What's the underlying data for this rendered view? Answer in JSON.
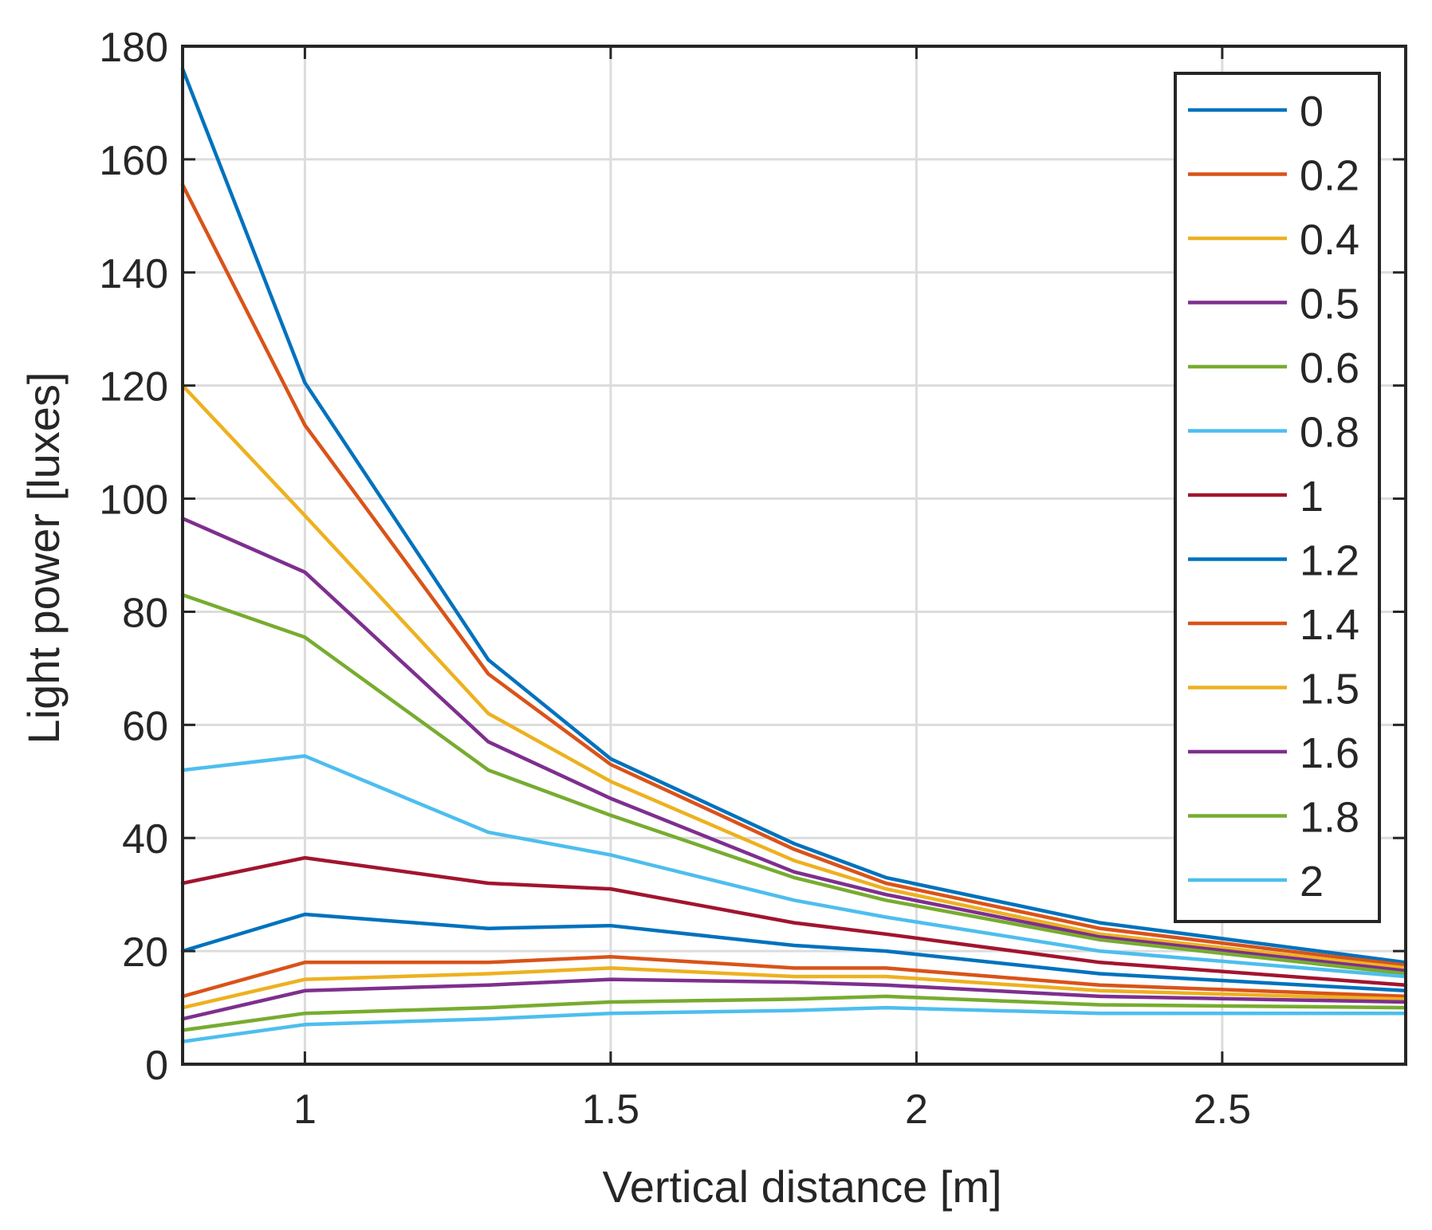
{
  "chart_data": {
    "type": "line",
    "title": "",
    "xlabel": "Vertical distance [m]",
    "ylabel": "Light power [luxes]",
    "xlim": [
      0.8,
      2.8
    ],
    "ylim": [
      0,
      180
    ],
    "xticks": [
      1,
      1.5,
      2,
      2.5
    ],
    "xtick_labels": [
      "1",
      "1.5",
      "2",
      "2.5"
    ],
    "yticks": [
      0,
      20,
      40,
      60,
      80,
      100,
      120,
      140,
      160,
      180
    ],
    "ytick_labels": [
      "0",
      "20",
      "40",
      "60",
      "80",
      "100",
      "120",
      "140",
      "160",
      "180"
    ],
    "grid": true,
    "legend_position": "top-right",
    "x": [
      0.8,
      1.0,
      1.3,
      1.5,
      1.8,
      1.95,
      2.3,
      2.8
    ],
    "series": [
      {
        "name": "0",
        "color": "#0072BD",
        "values": [
          176,
          120.5,
          71.5,
          54,
          39,
          33,
          25,
          18
        ]
      },
      {
        "name": "0.2",
        "color": "#D95319",
        "values": [
          155.5,
          113,
          69,
          53,
          38,
          32,
          24,
          17.5
        ]
      },
      {
        "name": "0.4",
        "color": "#EDB120",
        "values": [
          120,
          97,
          62,
          50,
          36,
          31,
          23,
          17
        ]
      },
      {
        "name": "0.5",
        "color": "#7E2F8E",
        "values": [
          96.5,
          87,
          57,
          47,
          34,
          30,
          22.5,
          16.5
        ]
      },
      {
        "name": "0.6",
        "color": "#77AC30",
        "values": [
          83,
          75.5,
          52,
          44,
          33,
          29,
          22,
          16
        ]
      },
      {
        "name": "0.8",
        "color": "#4DBEEE",
        "values": [
          52,
          54.5,
          41,
          37,
          29,
          26,
          20,
          15.5
        ]
      },
      {
        "name": "1",
        "color": "#A2142F",
        "values": [
          32,
          36.5,
          32,
          31,
          25,
          23,
          18,
          14
        ]
      },
      {
        "name": "1.2",
        "color": "#0072BD",
        "values": [
          20,
          26.5,
          24,
          24.5,
          21,
          20,
          16,
          13
        ]
      },
      {
        "name": "1.4",
        "color": "#D95319",
        "values": [
          12,
          18,
          18,
          19,
          17,
          17,
          14,
          12
        ]
      },
      {
        "name": "1.5",
        "color": "#EDB120",
        "values": [
          10,
          15,
          16,
          17,
          15.5,
          15.5,
          13,
          11.5
        ]
      },
      {
        "name": "1.6",
        "color": "#7E2F8E",
        "values": [
          8,
          13,
          14,
          15,
          14.5,
          14,
          12,
          11
        ]
      },
      {
        "name": "1.8",
        "color": "#77AC30",
        "values": [
          6,
          9,
          10,
          11,
          11.5,
          12,
          10.5,
          10
        ]
      },
      {
        "name": "2",
        "color": "#4DBEEE",
        "values": [
          4,
          7,
          8,
          9,
          9.5,
          10,
          9,
          9
        ]
      }
    ]
  }
}
